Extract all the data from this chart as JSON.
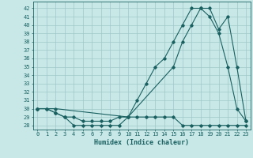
{
  "xlabel": "Humidex (Indice chaleur)",
  "ylabel": "",
  "bg_color": "#c8e8e8",
  "grid_color": "#a0c8c8",
  "line_color": "#1a6060",
  "xlim": [
    -0.5,
    23.5
  ],
  "ylim": [
    27.5,
    42.8
  ],
  "xticks": [
    0,
    1,
    2,
    3,
    4,
    5,
    6,
    7,
    8,
    9,
    10,
    11,
    12,
    13,
    14,
    15,
    16,
    17,
    18,
    19,
    20,
    21,
    22,
    23
  ],
  "yticks": [
    28,
    29,
    30,
    31,
    32,
    33,
    34,
    35,
    36,
    37,
    38,
    39,
    40,
    41,
    42
  ],
  "line1_x": [
    0,
    1,
    2,
    3,
    4,
    5,
    6,
    7,
    8,
    9,
    10,
    11,
    12,
    13,
    14,
    15,
    16,
    17,
    18,
    19,
    20,
    21,
    22,
    23
  ],
  "line1_y": [
    30,
    30,
    29.5,
    29,
    28,
    28,
    28,
    28,
    28,
    28,
    29,
    29,
    29,
    29,
    29,
    29,
    28,
    28,
    28,
    28,
    28,
    28,
    28,
    28
  ],
  "line2_x": [
    0,
    1,
    2,
    3,
    4,
    5,
    6,
    7,
    8,
    9,
    10,
    11,
    12,
    13,
    14,
    15,
    16,
    17,
    18,
    19,
    20,
    21,
    22,
    23
  ],
  "line2_y": [
    30,
    30,
    29.5,
    29,
    29,
    28.5,
    28.5,
    28.5,
    28.5,
    29,
    29,
    31,
    33,
    35,
    36,
    38,
    40,
    42,
    42,
    41,
    39,
    35,
    30,
    28.5
  ],
  "line3_x": [
    0,
    2,
    10,
    15,
    16,
    17,
    18,
    19,
    20,
    21,
    22,
    23
  ],
  "line3_y": [
    30,
    30,
    29,
    35,
    38,
    40,
    42,
    42,
    39.5,
    41,
    35,
    28.5
  ]
}
